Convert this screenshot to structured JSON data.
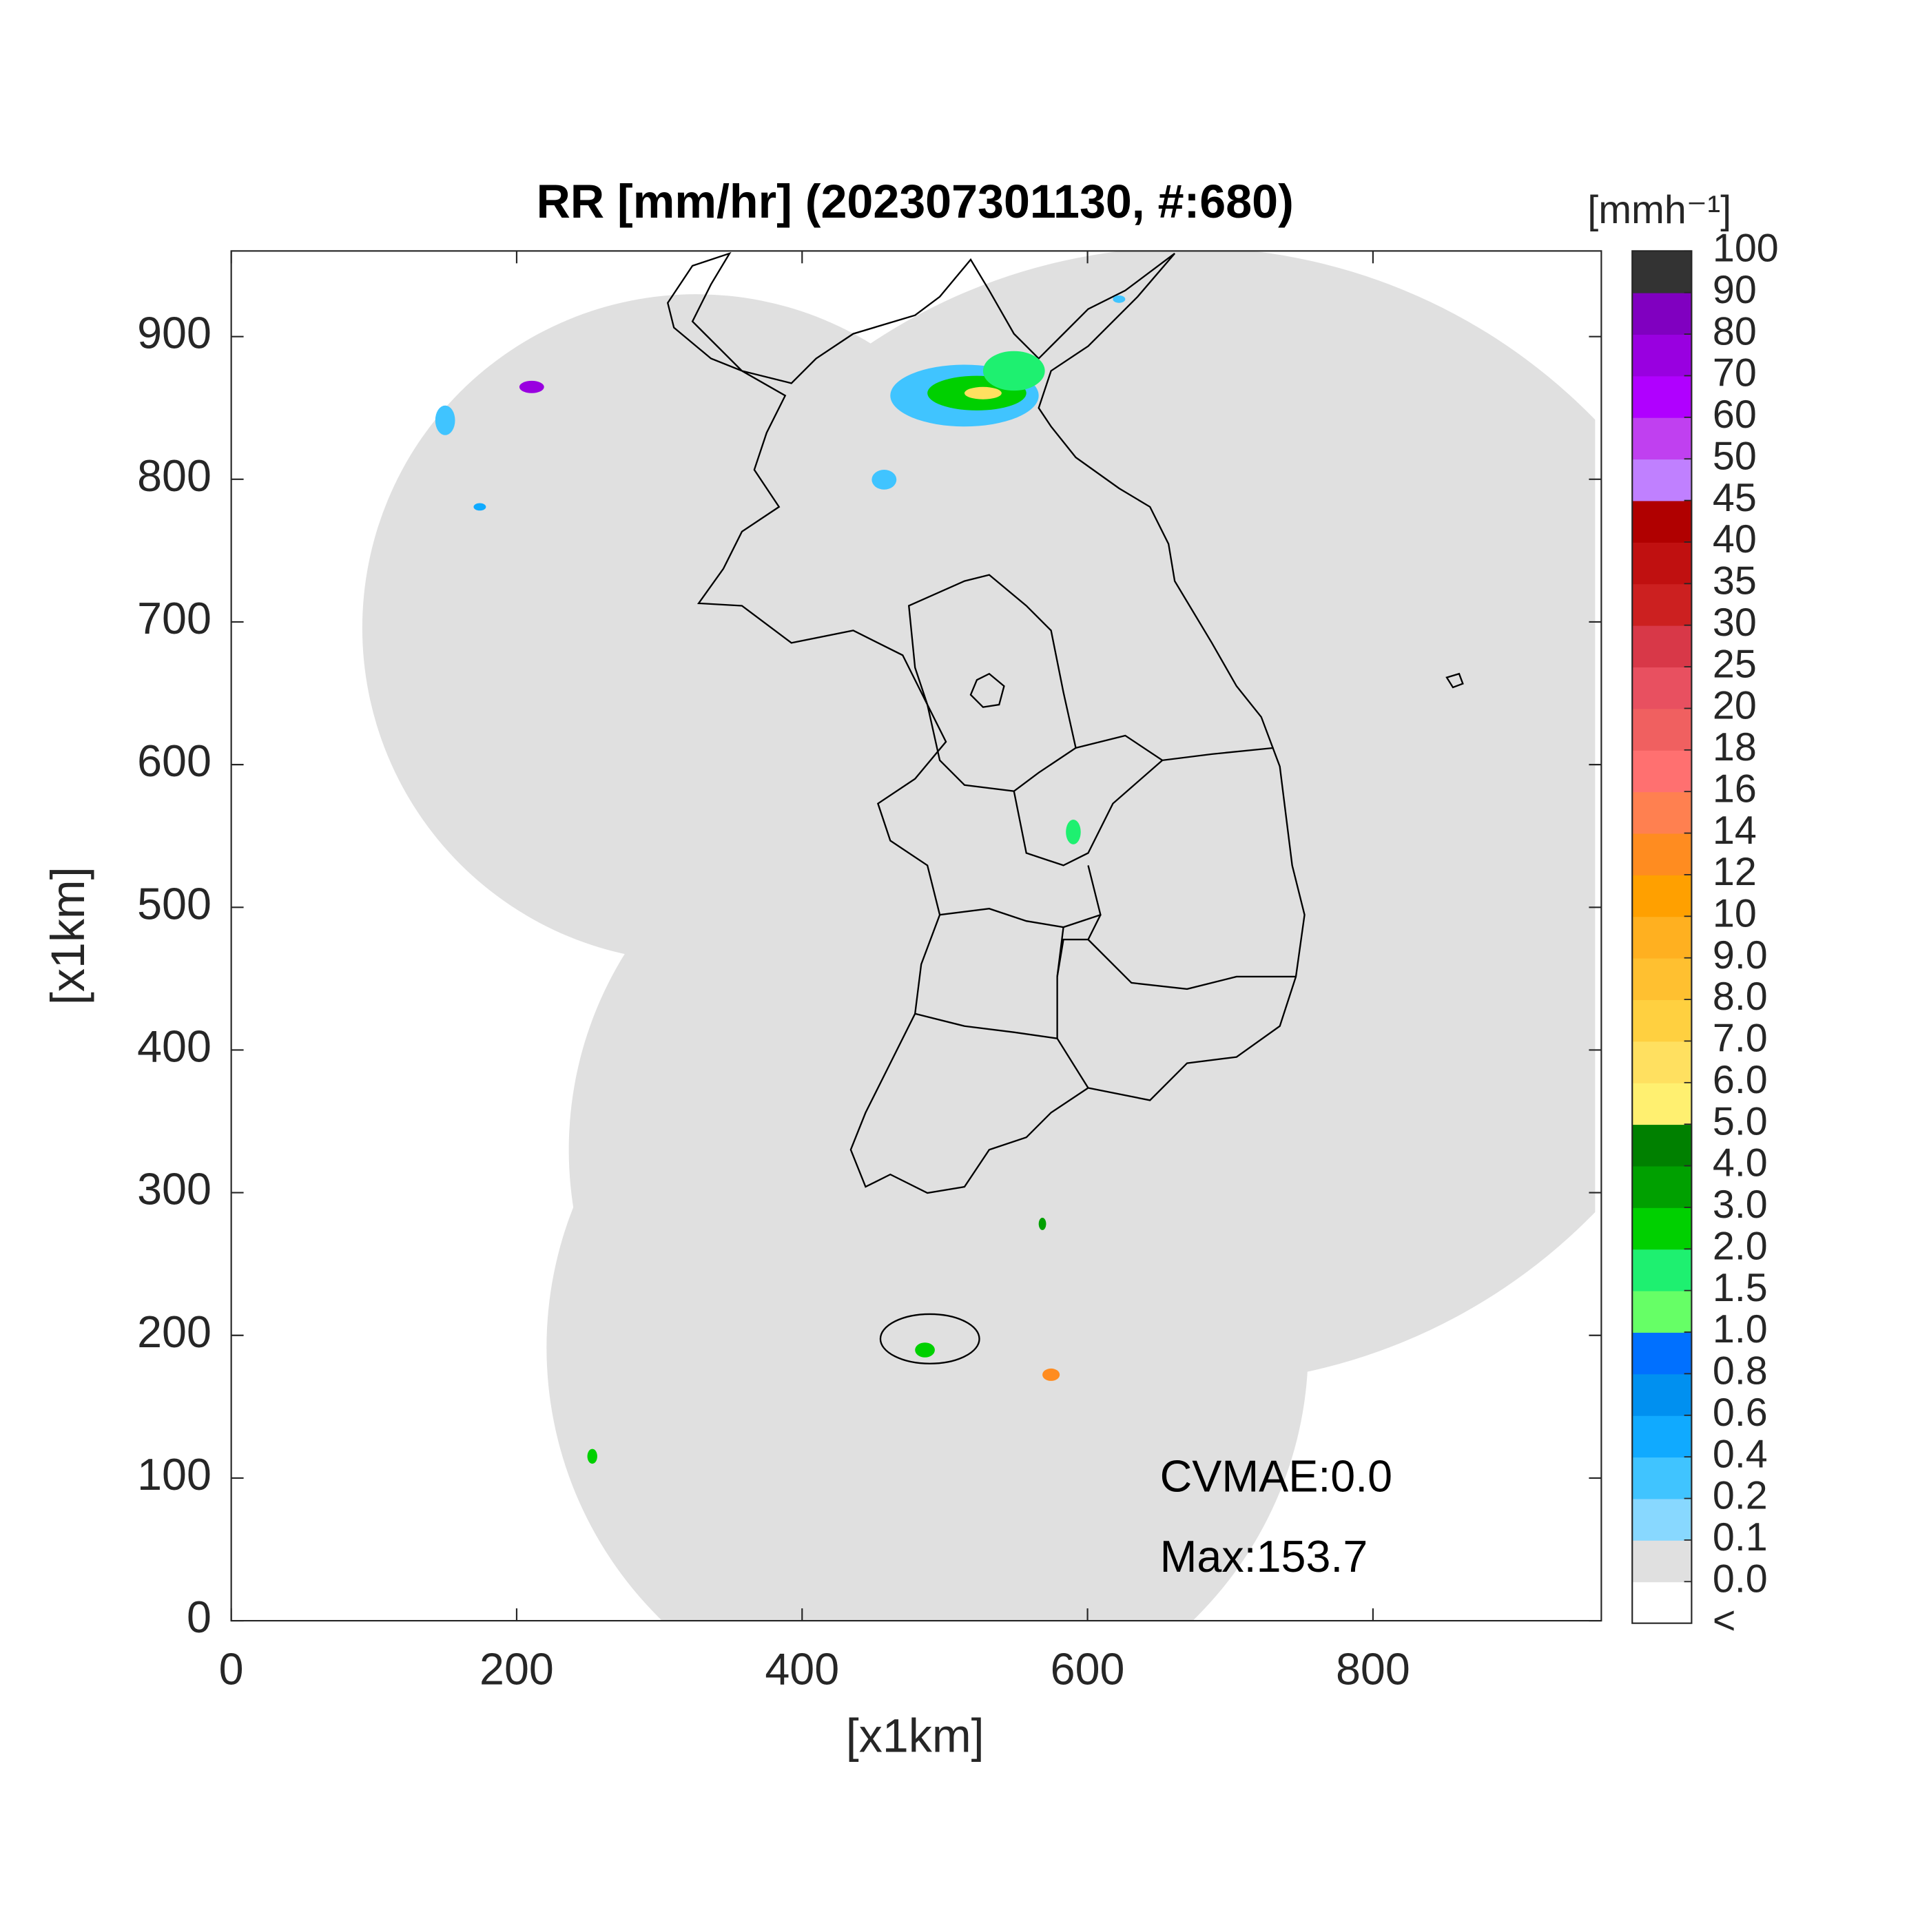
{
  "chart_data": {
    "type": "radar-map",
    "title": "RR [mm/hr] (202307301130, #:680)",
    "x_label": "[x1km]",
    "y_label": "[x1km]",
    "xlim": [
      0,
      960
    ],
    "ylim": [
      0,
      960
    ],
    "xticks": [
      0,
      200,
      400,
      600,
      800
    ],
    "yticks": [
      0,
      100,
      200,
      300,
      400,
      500,
      600,
      700,
      800,
      900
    ],
    "annotations": [
      "CVMAE:0.0",
      "Max:153.7"
    ],
    "colorbar": {
      "unit_label": "[mmh⁻¹]",
      "under_label": "<",
      "under_color": "#ffffff",
      "levels": [
        {
          "value": 0,
          "label": "0.0"
        },
        0.1,
        0.2,
        0.4,
        0.6,
        0.8,
        {
          "value": 1,
          "label": "1.0"
        },
        1.5,
        {
          "value": 2,
          "label": "2.0"
        },
        {
          "value": 3,
          "label": "3.0"
        },
        {
          "value": 4,
          "label": "4.0"
        },
        {
          "value": 5,
          "label": "5.0"
        },
        {
          "value": 6,
          "label": "6.0"
        },
        {
          "value": 7,
          "label": "7.0"
        },
        {
          "value": 8,
          "label": "8.0"
        },
        {
          "value": 9,
          "label": "9.0"
        },
        10,
        12,
        14,
        16,
        18,
        20,
        25,
        30,
        35,
        40,
        45,
        50,
        60,
        70,
        80,
        90,
        100
      ],
      "colors": [
        "#e0e0e0",
        "#88d8ff",
        "#40c4ff",
        "#10aaff",
        "#0090f0",
        "#0070ff",
        "#66ff66",
        "#1ef070",
        "#00d000",
        "#00a000",
        "#008000",
        "#fff070",
        "#ffe060",
        "#ffd040",
        "#ffc030",
        "#ffb020",
        "#ffa000",
        "#ff8c20",
        "#ff8050",
        "#ff7070",
        "#f06060",
        "#e85060",
        "#d83848",
        "#cc2020",
        "#c01010",
        "#b00000",
        "#c080ff",
        "#c040f0",
        "#b000ff",
        "#9900e0",
        "#8000c0",
        "#333333"
      ]
    }
  }
}
